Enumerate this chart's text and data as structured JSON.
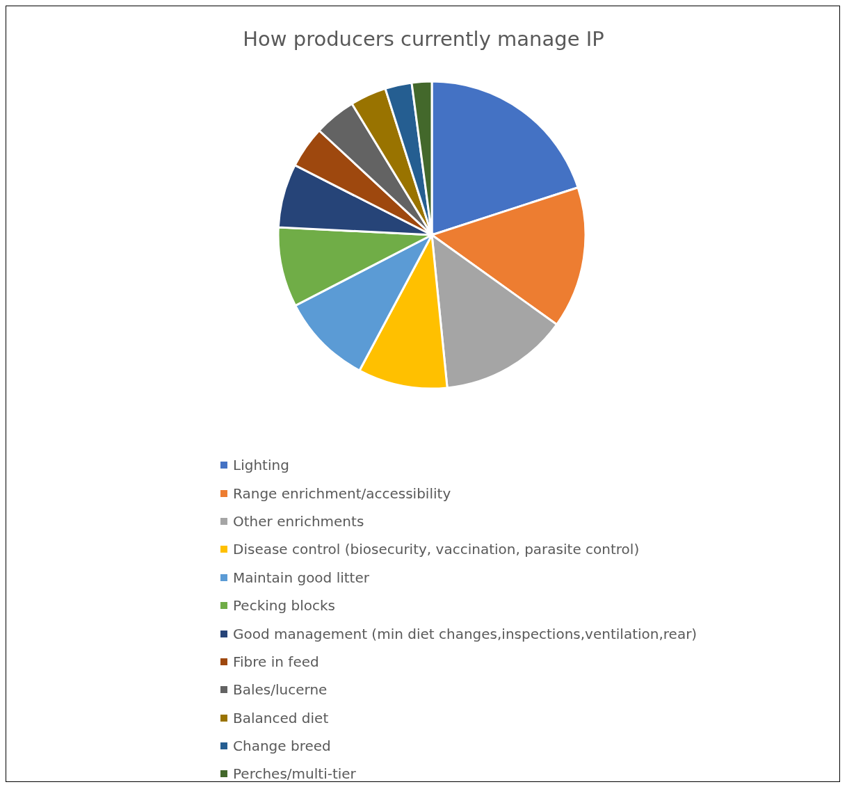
{
  "chart_data": {
    "type": "pie",
    "title": "How producers currently manage IP",
    "categories": [
      "Lighting",
      "Range enrichment/accessibility",
      "Other enrichments",
      "Disease control (biosecurity, vaccination, parasite control)",
      "Maintain good litter",
      "Pecking blocks",
      "Good management (min diet changes,inspections,ventilation,rear)",
      "Fibre in feed",
      "Bales/lucerne",
      "Balanced diet",
      "Change breed",
      "Perches/multi-tier"
    ],
    "values": [
      20.0,
      14.9,
      13.5,
      9.4,
      9.6,
      8.4,
      6.7,
      4.4,
      4.4,
      3.8,
      2.8,
      2.1
    ],
    "colors": [
      "#4472c4",
      "#ed7d31",
      "#a5a5a5",
      "#ffc000",
      "#5b9bd5",
      "#70ad47",
      "#264478",
      "#9e480e",
      "#636363",
      "#997300",
      "#255e91",
      "#43682b"
    ],
    "legend": "bottom"
  }
}
